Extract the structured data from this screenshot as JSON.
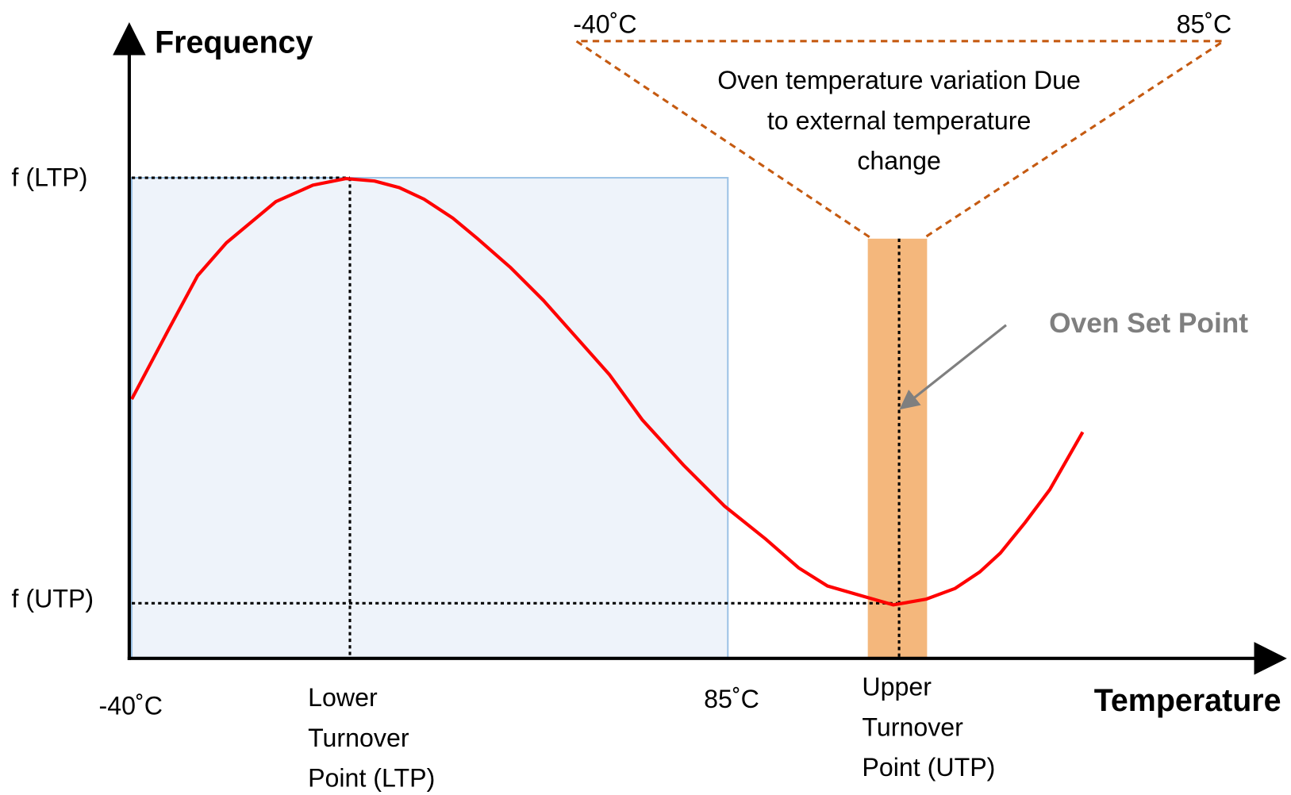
{
  "axes": {
    "y_title": "Frequency",
    "x_title": "Temperature"
  },
  "y_labels": [
    "f (LTP)",
    "f (UTP)"
  ],
  "x_labels": {
    "start": "-40˚C",
    "ltp": [
      "Lower",
      "Turnover",
      "Point (LTP)"
    ],
    "end": "85˚C",
    "utp": [
      "Upper",
      "Turnover",
      "Point (UTP)"
    ]
  },
  "oven_range": {
    "low": "-40˚C",
    "high": "85˚C",
    "description": [
      "Oven temperature variation Due",
      "to external temperature",
      "change"
    ]
  },
  "set_point": "Oven Set Point"
}
